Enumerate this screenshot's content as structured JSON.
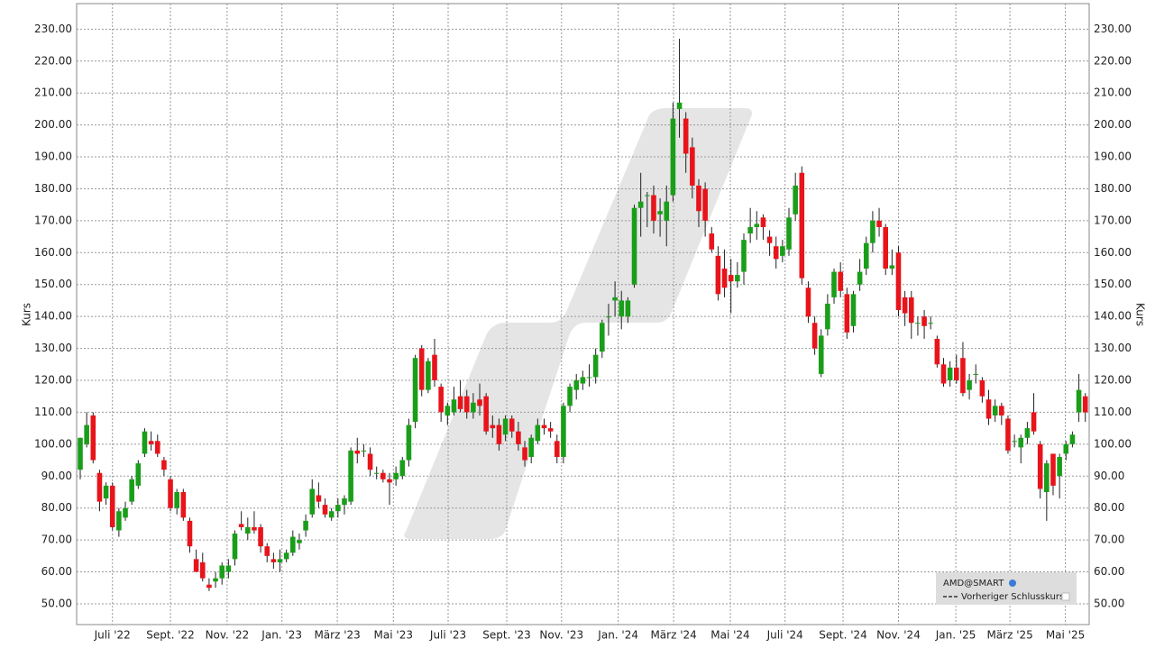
{
  "chart_data": {
    "type": "candlestick",
    "y_label": "Kurs",
    "legend": {
      "series_name": "AMD@SMART",
      "reference_label": "Vorheriger Schlusskurs",
      "position": "lower right"
    },
    "up_color": "#1a9e1a",
    "down_color": "#e8141b",
    "grid": true,
    "ylim": [
      43.5,
      238
    ],
    "yticks": [
      {
        "value": 50,
        "label": "50.00"
      },
      {
        "value": 60,
        "label": "60.00"
      },
      {
        "value": 70,
        "label": "70.00"
      },
      {
        "value": 80,
        "label": "80.00"
      },
      {
        "value": 90,
        "label": "90.00"
      },
      {
        "value": 100,
        "label": "100.00"
      },
      {
        "value": 110,
        "label": "110.00"
      },
      {
        "value": 120,
        "label": "120.00"
      },
      {
        "value": 130,
        "label": "130.00"
      },
      {
        "value": 140,
        "label": "140.00"
      },
      {
        "value": 150,
        "label": "150.00"
      },
      {
        "value": 160,
        "label": "160.00"
      },
      {
        "value": 170,
        "label": "170.00"
      },
      {
        "value": 180,
        "label": "180.00"
      },
      {
        "value": 190,
        "label": "190.00"
      },
      {
        "value": 200,
        "label": "200.00"
      },
      {
        "value": 210,
        "label": "210.00"
      },
      {
        "value": 220,
        "label": "220.00"
      },
      {
        "value": 230,
        "label": "230.00"
      }
    ],
    "xlim": [
      -0.56,
      156.6
    ],
    "xticks": [
      {
        "value": 5.0,
        "label": "Juli '22"
      },
      {
        "value": 14.0,
        "label": "Sept. '22"
      },
      {
        "value": 22.8,
        "label": "Nov. '22"
      },
      {
        "value": 31.3,
        "label": "Jan. '23"
      },
      {
        "value": 39.9,
        "label": "März '23"
      },
      {
        "value": 48.6,
        "label": "Mai '23"
      },
      {
        "value": 57.1,
        "label": "Juli '23"
      },
      {
        "value": 66.2,
        "label": "Sept. '23"
      },
      {
        "value": 74.7,
        "label": "Nov. '23"
      },
      {
        "value": 83.5,
        "label": "Jan. '24"
      },
      {
        "value": 92.1,
        "label": "März '24"
      },
      {
        "value": 100.9,
        "label": "Mai '24"
      },
      {
        "value": 109.4,
        "label": "Juli '24"
      },
      {
        "value": 118.4,
        "label": "Sept. '24"
      },
      {
        "value": 127.0,
        "label": "Nov. '24"
      },
      {
        "value": 135.9,
        "label": "Jan. '25"
      },
      {
        "value": 144.3,
        "label": "März '25"
      },
      {
        "value": 152.9,
        "label": "Mai '25"
      }
    ],
    "candles": [
      [
        92,
        102,
        89,
        102
      ],
      [
        100,
        110,
        99,
        106
      ],
      [
        109,
        110,
        94,
        95
      ],
      [
        91,
        92,
        79,
        82
      ],
      [
        83,
        88,
        81,
        87
      ],
      [
        87,
        88,
        73,
        74
      ],
      [
        73,
        80,
        71,
        79
      ],
      [
        77,
        82,
        76,
        80
      ],
      [
        82,
        90,
        81,
        89
      ],
      [
        87,
        95,
        86,
        94
      ],
      [
        97,
        105,
        96,
        104
      ],
      [
        101,
        104,
        98,
        100
      ],
      [
        101,
        103,
        96,
        97
      ],
      [
        95,
        96,
        90,
        92
      ],
      [
        89,
        90,
        79,
        80
      ],
      [
        80,
        86,
        78,
        85
      ],
      [
        85,
        86,
        76,
        77
      ],
      [
        76,
        77,
        66,
        68
      ],
      [
        64,
        67,
        60,
        60
      ],
      [
        63,
        66,
        57,
        58
      ],
      [
        56,
        58,
        54,
        55
      ],
      [
        57,
        60,
        55,
        58
      ],
      [
        58,
        63,
        56,
        62
      ],
      [
        60,
        64,
        58,
        62
      ],
      [
        64,
        73,
        62,
        72
      ],
      [
        75,
        79,
        73,
        74
      ],
      [
        72,
        77,
        70,
        74
      ],
      [
        74,
        79,
        72,
        73
      ],
      [
        74,
        75,
        66,
        68
      ],
      [
        68,
        69,
        63,
        65
      ],
      [
        64,
        66,
        61,
        63
      ],
      [
        63,
        67,
        60,
        64
      ],
      [
        64,
        67,
        63,
        66
      ],
      [
        66,
        73,
        65,
        71
      ],
      [
        69,
        72,
        67,
        70
      ],
      [
        73,
        78,
        71,
        76
      ],
      [
        78,
        89,
        77,
        86
      ],
      [
        84,
        88,
        80,
        82
      ],
      [
        81,
        83,
        77,
        78
      ],
      [
        77,
        80,
        76,
        79
      ],
      [
        79,
        83,
        77,
        81
      ],
      [
        81,
        84,
        78,
        83
      ],
      [
        82,
        99,
        81,
        98
      ],
      [
        98,
        102,
        94,
        97
      ],
      [
        98,
        100,
        96,
        98
      ],
      [
        97,
        99,
        90,
        92
      ],
      [
        91,
        93,
        89,
        91
      ],
      [
        91,
        92,
        88,
        89
      ],
      [
        89,
        91,
        81,
        88
      ],
      [
        89,
        93,
        87,
        91
      ],
      [
        90,
        96,
        89,
        95
      ],
      [
        95,
        108,
        93,
        106
      ],
      [
        107,
        128,
        105,
        127
      ],
      [
        130,
        131,
        115,
        117
      ],
      [
        117,
        127,
        116,
        126
      ],
      [
        128,
        133,
        118,
        120
      ],
      [
        118,
        119,
        107,
        110
      ],
      [
        109,
        113,
        106,
        112
      ],
      [
        110,
        118,
        109,
        114
      ],
      [
        115,
        120,
        110,
        111
      ],
      [
        115,
        117,
        108,
        110
      ],
      [
        110,
        116,
        108,
        113
      ],
      [
        114,
        119,
        109,
        112
      ],
      [
        115,
        116,
        103,
        104
      ],
      [
        106,
        109,
        102,
        105
      ],
      [
        106,
        108,
        98,
        100
      ],
      [
        103,
        109,
        101,
        108
      ],
      [
        108,
        109,
        102,
        104
      ],
      [
        104,
        107,
        98,
        100
      ],
      [
        99,
        101,
        93,
        95
      ],
      [
        96,
        103,
        94,
        102
      ],
      [
        101,
        108,
        100,
        106
      ],
      [
        106,
        108,
        103,
        105
      ],
      [
        105,
        107,
        102,
        104
      ],
      [
        101,
        103,
        94,
        96
      ],
      [
        96,
        113,
        94,
        112
      ],
      [
        112,
        119,
        110,
        118
      ],
      [
        117,
        122,
        114,
        120
      ],
      [
        119,
        123,
        117,
        121
      ],
      [
        121,
        125,
        118,
        121
      ],
      [
        121,
        130,
        119,
        128
      ],
      [
        129,
        139,
        127,
        138
      ],
      [
        140,
        144,
        134,
        140
      ],
      [
        145,
        151,
        140,
        146
      ],
      [
        140,
        148,
        136,
        145
      ],
      [
        140,
        146,
        138,
        145
      ],
      [
        150,
        175,
        149,
        174
      ],
      [
        174,
        185,
        165,
        176
      ],
      [
        178,
        179,
        168,
        178
      ],
      [
        178,
        181,
        166,
        170
      ],
      [
        172,
        177,
        165,
        173
      ],
      [
        170,
        181,
        162,
        176
      ],
      [
        178,
        207,
        176,
        202
      ],
      [
        205,
        227,
        196,
        207
      ],
      [
        202,
        204,
        185,
        191
      ],
      [
        193,
        196,
        177,
        181
      ],
      [
        181,
        183,
        168,
        173
      ],
      [
        180,
        182,
        165,
        170
      ],
      [
        166,
        168,
        160,
        161
      ],
      [
        159,
        162,
        145,
        147
      ],
      [
        155,
        161,
        146,
        149
      ],
      [
        153,
        158,
        141,
        151
      ],
      [
        151,
        157,
        149,
        153
      ],
      [
        154,
        166,
        150,
        164
      ],
      [
        166,
        174,
        163,
        168
      ],
      [
        168,
        173,
        164,
        169
      ],
      [
        171,
        172,
        164,
        168
      ],
      [
        165,
        167,
        159,
        163
      ],
      [
        162,
        165,
        155,
        158
      ],
      [
        159,
        164,
        157,
        162
      ],
      [
        161,
        174,
        159,
        171
      ],
      [
        172,
        185,
        170,
        181
      ],
      [
        185,
        187,
        150,
        152
      ],
      [
        149,
        151,
        138,
        140
      ],
      [
        138,
        140,
        128,
        130
      ],
      [
        122,
        136,
        121,
        134
      ],
      [
        136,
        147,
        134,
        144
      ],
      [
        146,
        155,
        144,
        154
      ],
      [
        154,
        157,
        146,
        148
      ],
      [
        147,
        149,
        133,
        135
      ],
      [
        137,
        148,
        135,
        147
      ],
      [
        150,
        158,
        148,
        154
      ],
      [
        155,
        165,
        153,
        163
      ],
      [
        163,
        173,
        160,
        170
      ],
      [
        170,
        174,
        165,
        168
      ],
      [
        168,
        169,
        153,
        155
      ],
      [
        155,
        161,
        153,
        156
      ],
      [
        160,
        162,
        140,
        142
      ],
      [
        146,
        148,
        137,
        141
      ],
      [
        146,
        148,
        133,
        138
      ],
      [
        138,
        140,
        134,
        138
      ],
      [
        140,
        142,
        133,
        137
      ],
      [
        138,
        140,
        136,
        138
      ],
      [
        133,
        134,
        124,
        125
      ],
      [
        125,
        127,
        118,
        119
      ],
      [
        120,
        126,
        118,
        124
      ],
      [
        124,
        128,
        119,
        120
      ],
      [
        127,
        132,
        115,
        116
      ],
      [
        117,
        122,
        114,
        120
      ],
      [
        122,
        125,
        119,
        122
      ],
      [
        120,
        121,
        113,
        115
      ],
      [
        114,
        117,
        106,
        108
      ],
      [
        109,
        114,
        107,
        112
      ],
      [
        112,
        113,
        106,
        109
      ],
      [
        108,
        109,
        97,
        98
      ],
      [
        101,
        103,
        99,
        101
      ],
      [
        99,
        103,
        94,
        102
      ],
      [
        102,
        107,
        100,
        105
      ],
      [
        110,
        116,
        103,
        104
      ],
      [
        100,
        101,
        83,
        86
      ],
      [
        85,
        95,
        76,
        94
      ],
      [
        97,
        97,
        84,
        87
      ],
      [
        90,
        97,
        83,
        96
      ],
      [
        97,
        101,
        95,
        100
      ],
      [
        100,
        104,
        99,
        103
      ],
      [
        110,
        122,
        107,
        117
      ],
      [
        115,
        116,
        107,
        110
      ]
    ]
  }
}
